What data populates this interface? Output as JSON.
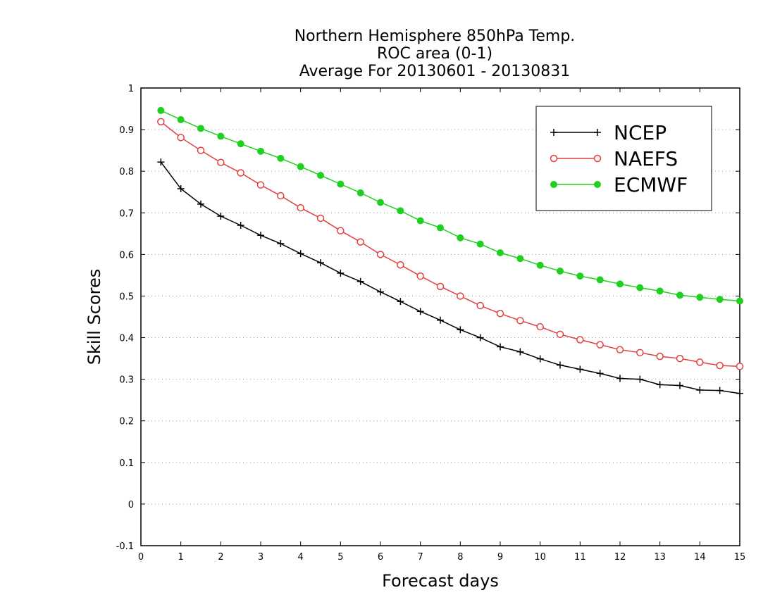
{
  "chart_data": {
    "type": "line",
    "title_lines": [
      "Northern Hemisphere 850hPa Temp.",
      "ROC area (0-1)",
      "Average For 20130601 - 20130831"
    ],
    "xlabel": "Forecast days",
    "ylabel": "Skill Scores",
    "xlim": [
      0,
      15
    ],
    "ylim": [
      -0.1,
      1
    ],
    "x_ticks": [
      0,
      1,
      2,
      3,
      4,
      5,
      6,
      7,
      8,
      9,
      10,
      11,
      12,
      13,
      14,
      15
    ],
    "y_ticks": [
      -0.1,
      0,
      0.1,
      0.2,
      0.3,
      0.4,
      0.5,
      0.6,
      0.7,
      0.8,
      0.9,
      1
    ],
    "x_tick_labels": [
      "0",
      "1",
      "2",
      "3",
      "4",
      "5",
      "6",
      "7",
      "8",
      "9",
      "10",
      "11",
      "12",
      "13",
      "14",
      "15"
    ],
    "y_tick_labels": [
      "-0.1",
      "0",
      "0.1",
      "0.2",
      "0.3",
      "0.4",
      "0.5",
      "0.6",
      "0.7",
      "0.8",
      "0.9",
      "1"
    ],
    "grid": "horizontal dotted",
    "legend_placement": "top-right",
    "x": [
      0.5,
      1,
      1.5,
      2,
      2.5,
      3,
      3.5,
      4,
      4.5,
      5,
      5.5,
      6,
      6.5,
      7,
      7.5,
      8,
      8.5,
      9,
      9.5,
      10,
      10.5,
      11,
      11.5,
      12,
      12.5,
      13,
      13.5,
      14,
      14.5,
      15
    ],
    "series": [
      {
        "name": "NCEP",
        "color": "#000000",
        "marker": "plus",
        "values": [
          0.822,
          0.758,
          0.721,
          0.692,
          0.67,
          0.646,
          0.626,
          0.602,
          0.58,
          0.555,
          0.535,
          0.51,
          0.487,
          0.463,
          0.442,
          0.419,
          0.4,
          0.378,
          0.366,
          0.349,
          0.334,
          0.324,
          0.314,
          0.302,
          0.3,
          0.287,
          0.285,
          0.274,
          0.273,
          0.266
        ]
      },
      {
        "name": "NAEFS",
        "color": "#e04040",
        "marker": "open-circle",
        "values": [
          0.919,
          0.881,
          0.85,
          0.821,
          0.796,
          0.767,
          0.741,
          0.712,
          0.687,
          0.657,
          0.63,
          0.6,
          0.575,
          0.548,
          0.523,
          0.5,
          0.477,
          0.458,
          0.441,
          0.426,
          0.408,
          0.395,
          0.383,
          0.371,
          0.364,
          0.355,
          0.35,
          0.341,
          0.333,
          0.331
        ]
      },
      {
        "name": "ECMWF",
        "color": "#20d020",
        "marker": "filled-circle",
        "values": [
          0.946,
          0.924,
          0.903,
          0.884,
          0.866,
          0.848,
          0.831,
          0.811,
          0.79,
          0.769,
          0.748,
          0.725,
          0.705,
          0.681,
          0.664,
          0.64,
          0.625,
          0.604,
          0.59,
          0.574,
          0.56,
          0.548,
          0.539,
          0.529,
          0.52,
          0.512,
          0.502,
          0.497,
          0.492,
          0.488
        ]
      }
    ]
  }
}
